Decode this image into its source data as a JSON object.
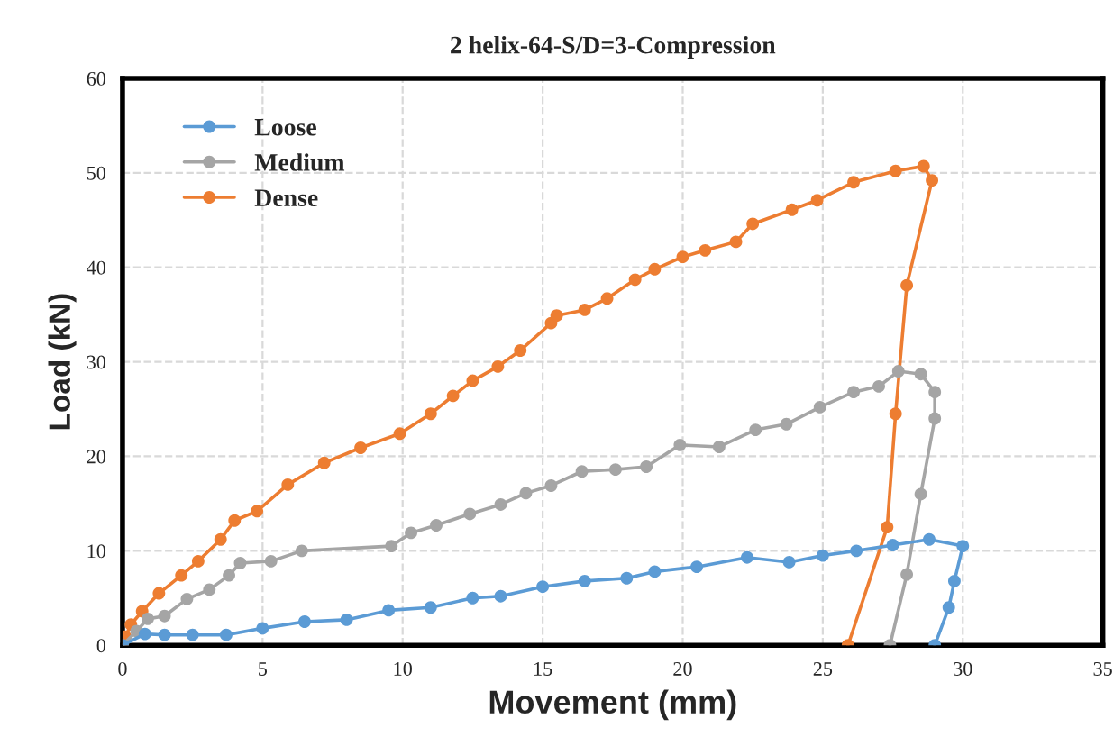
{
  "chart_data": {
    "type": "line",
    "title": "2 helix-64-S/D=3-Compression",
    "xlabel": "Movement (mm)",
    "ylabel": "Load (kN)",
    "xlim": [
      0,
      35
    ],
    "ylim": [
      0,
      60
    ],
    "xticks": [
      0,
      5,
      10,
      15,
      20,
      25,
      30,
      35
    ],
    "yticks": [
      0,
      10,
      20,
      30,
      40,
      50,
      60
    ],
    "grid": true,
    "legend": "top left",
    "marker": "circle",
    "line_style": "solid",
    "series": [
      {
        "name": "Loose",
        "color": "#5b9bd5",
        "x": [
          0,
          0.8,
          1.5,
          2.5,
          3.7,
          5,
          6.5,
          8,
          9.5,
          11,
          12.5,
          13.5,
          15,
          16.5,
          18,
          19,
          20.5,
          22.3,
          23.8,
          25,
          26.2,
          27.5,
          28.8,
          30.0,
          29.7,
          29.5,
          29.0
        ],
        "values": [
          0,
          1.2,
          1.1,
          1.1,
          1.1,
          1.8,
          2.5,
          2.7,
          3.7,
          4.0,
          5.0,
          5.2,
          6.2,
          6.8,
          7.1,
          7.8,
          8.3,
          9.3,
          8.8,
          9.5,
          10.0,
          10.6,
          11.2,
          10.5,
          6.8,
          4.0,
          0
        ]
      },
      {
        "name": "Medium",
        "color": "#a5a5a5",
        "x": [
          0,
          0.5,
          0.9,
          1.5,
          2.3,
          3.1,
          3.8,
          4.2,
          5.3,
          6.4,
          9.6,
          10.3,
          11.2,
          12.4,
          13.5,
          14.4,
          15.3,
          16.4,
          17.6,
          18.7,
          19.9,
          21.3,
          22.6,
          23.7,
          24.9,
          26.1,
          27.0,
          27.7,
          28.5,
          29.0,
          29.0,
          28.5,
          28.0,
          27.4
        ],
        "values": [
          0,
          1.5,
          2.8,
          3.1,
          4.9,
          5.9,
          7.4,
          8.7,
          8.9,
          10.0,
          10.5,
          11.9,
          12.7,
          13.9,
          14.9,
          16.1,
          16.9,
          18.4,
          18.6,
          18.9,
          21.2,
          21.0,
          22.8,
          23.4,
          25.2,
          26.8,
          27.4,
          29.0,
          28.7,
          26.8,
          24.0,
          16.0,
          7.5,
          0
        ]
      },
      {
        "name": "Dense",
        "color": "#ed7d31",
        "x": [
          0,
          0.1,
          0.3,
          0.7,
          1.3,
          2.1,
          2.7,
          3.5,
          4.0,
          4.8,
          5.9,
          7.2,
          8.5,
          9.9,
          11.0,
          11.8,
          12.5,
          13.4,
          14.2,
          15.3,
          15.5,
          16.5,
          17.3,
          18.3,
          19.0,
          20.0,
          20.8,
          21.9,
          22.5,
          23.9,
          24.8,
          26.1,
          27.6,
          28.6,
          28.9,
          28.0,
          27.6,
          27.3,
          25.9
        ],
        "values": [
          0,
          0.9,
          2.2,
          3.6,
          5.5,
          7.4,
          8.9,
          11.2,
          13.2,
          14.2,
          17.0,
          19.3,
          20.9,
          22.4,
          24.5,
          26.4,
          28.0,
          29.5,
          31.2,
          34.1,
          34.9,
          35.5,
          36.7,
          38.7,
          39.8,
          41.1,
          41.8,
          42.7,
          44.6,
          46.1,
          47.1,
          49.0,
          50.2,
          50.7,
          49.2,
          38.1,
          24.5,
          12.5,
          0
        ]
      }
    ]
  }
}
